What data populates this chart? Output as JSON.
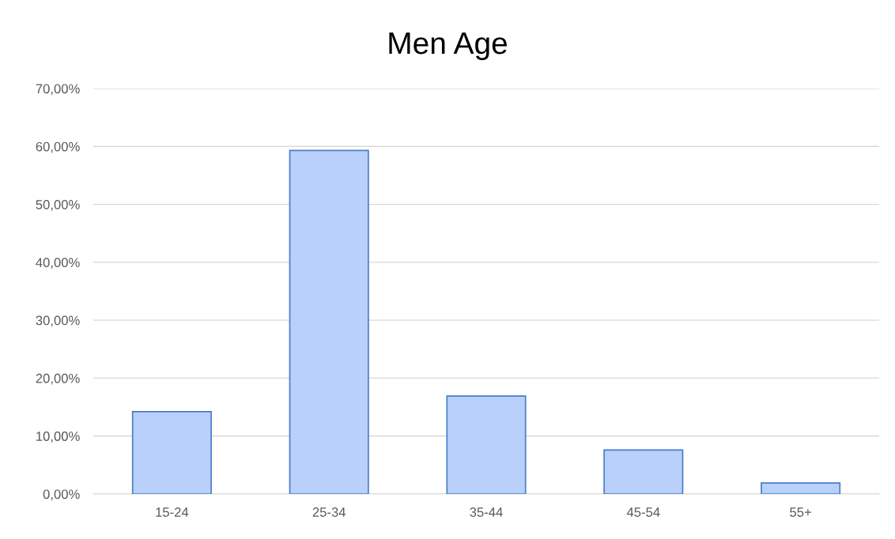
{
  "chart_data": {
    "type": "bar",
    "title": "Men Age",
    "categories": [
      "15-24",
      "25-34",
      "35-44",
      "45-54",
      "55+"
    ],
    "values": [
      14.2,
      59.3,
      16.9,
      7.6,
      1.9
    ],
    "color": "#b8d0fa",
    "ylim": [
      0,
      70
    ],
    "yticks": [
      {
        "value": 0,
        "label": "0,00%"
      },
      {
        "value": 10,
        "label": "10,00%"
      },
      {
        "value": 20,
        "label": "20,00%"
      },
      {
        "value": 30,
        "label": "30,00%"
      },
      {
        "value": 40,
        "label": "40,00%"
      },
      {
        "value": 50,
        "label": "50,00%"
      },
      {
        "value": 60,
        "label": "60,00%"
      },
      {
        "value": 70,
        "label": "70,00%"
      }
    ],
    "grid": "y"
  }
}
